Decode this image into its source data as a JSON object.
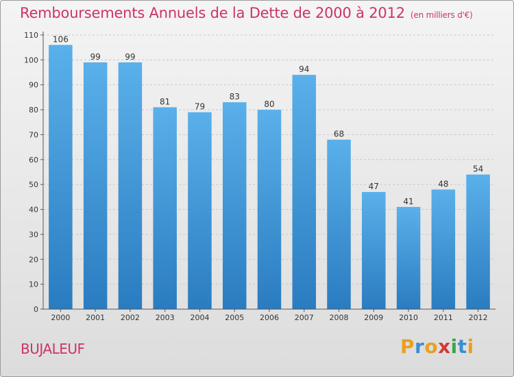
{
  "title": "Remboursements Annuels de la Dette de 2000 à 2012",
  "unit": "(en milliers d'€)",
  "commune": "BUJALEUF",
  "logo": {
    "letters": [
      "P",
      "r",
      "o",
      "x",
      "i",
      "t",
      "i"
    ],
    "colors": [
      "#e8a020",
      "#3a8fd0",
      "#e8a020",
      "#d03a3a",
      "#3aa84a",
      "#3a8fd0",
      "#e8a020"
    ]
  },
  "colors": {
    "bar_light": "#5ab0ea",
    "bar_dark": "#2a7cc0",
    "title": "#cc3366"
  },
  "chart_data": {
    "type": "bar",
    "categories": [
      "2000",
      "2001",
      "2002",
      "2003",
      "2004",
      "2005",
      "2006",
      "2007",
      "2008",
      "2009",
      "2010",
      "2011",
      "2012"
    ],
    "values": [
      106,
      99,
      99,
      81,
      79,
      83,
      80,
      94,
      68,
      47,
      41,
      48,
      54
    ],
    "yticks": [
      0,
      10,
      20,
      30,
      40,
      50,
      60,
      70,
      80,
      90,
      100,
      110
    ],
    "ylim": [
      0,
      110
    ],
    "grid": true
  }
}
